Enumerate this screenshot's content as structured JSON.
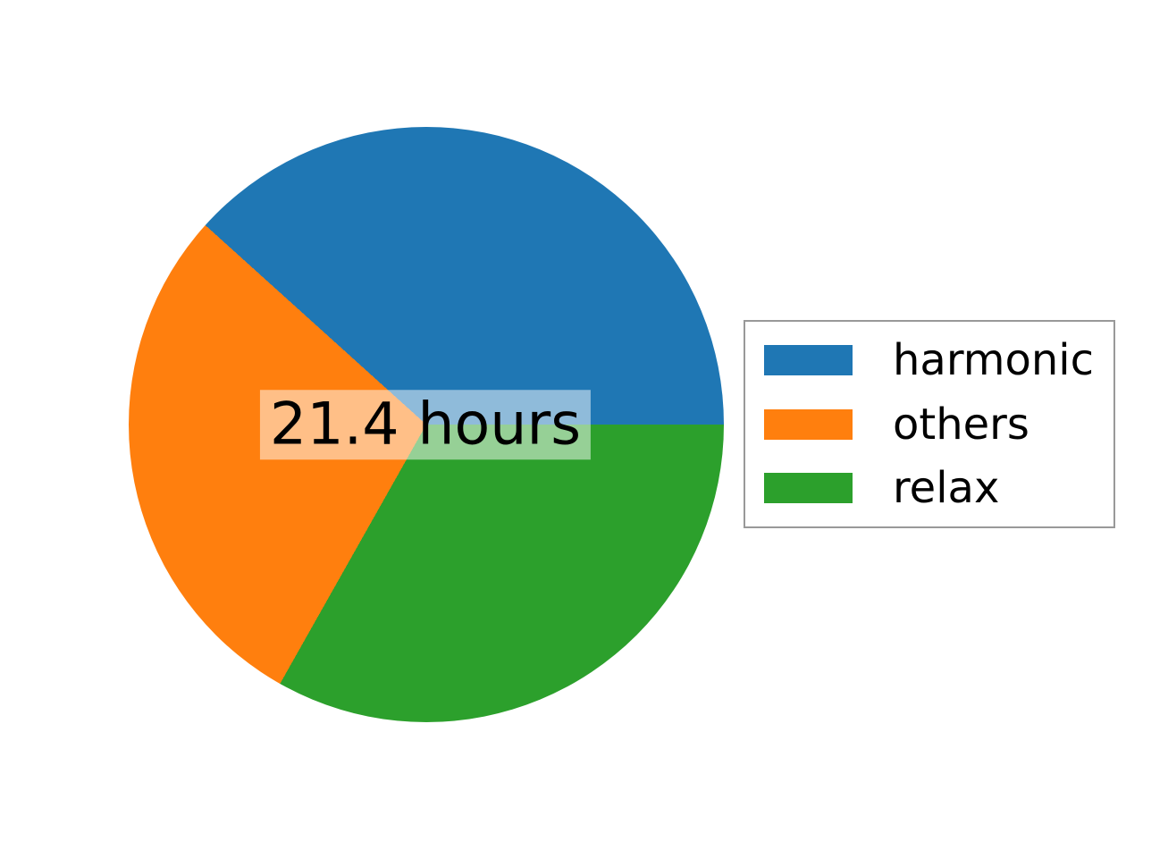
{
  "chart_data": {
    "type": "pie",
    "title": "",
    "units": "hours",
    "center_label": "21.4 hours",
    "total_hours": 21.4,
    "series": [
      {
        "name": "harmonic",
        "value": 8.2,
        "fraction": 0.383,
        "angle_deg": 137.9,
        "color": "#1f77b4"
      },
      {
        "name": "others",
        "value": 6.1,
        "fraction": 0.285,
        "angle_deg": 102.6,
        "color": "#ff7f0e"
      },
      {
        "name": "relax",
        "value": 7.1,
        "fraction": 0.332,
        "angle_deg": 119.4,
        "color": "#2ca02c"
      }
    ],
    "start_angle_deg": 0,
    "direction": "counterclockwise",
    "legend_position": "right",
    "background_color": "#ffffff",
    "center_label_background": "rgba(255,255,255,0.5)",
    "legend_border_color": "#999999"
  }
}
